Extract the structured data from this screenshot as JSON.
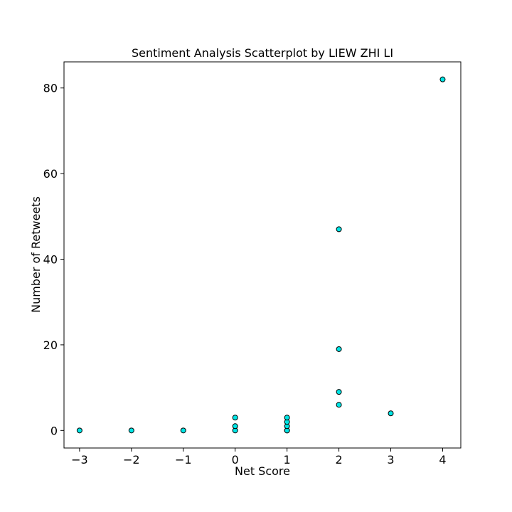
{
  "chart_data": {
    "type": "scatter",
    "title": "Sentiment Analysis Scatterplot by LIEW ZHI LI",
    "xlabel": "Net Score",
    "ylabel": "Number of Retweets",
    "xlim": [
      -3.3,
      4.35
    ],
    "ylim": [
      -4.1,
      86.1
    ],
    "xticks": [
      -3,
      -2,
      -1,
      0,
      1,
      2,
      3,
      4
    ],
    "xtick_labels": [
      "−3",
      "−2",
      "−1",
      "0",
      "1",
      "2",
      "3",
      "4"
    ],
    "yticks": [
      0,
      20,
      40,
      60,
      80
    ],
    "ytick_labels": [
      "0",
      "20",
      "40",
      "60",
      "80"
    ],
    "grid": false,
    "marker_color": "#00e5e5",
    "marker_edge_color": "#000000",
    "points": [
      {
        "x": -3,
        "y": 0
      },
      {
        "x": -2,
        "y": 0
      },
      {
        "x": -1,
        "y": 0
      },
      {
        "x": 0,
        "y": 0
      },
      {
        "x": 0,
        "y": 1
      },
      {
        "x": 0,
        "y": 3
      },
      {
        "x": 1,
        "y": 0
      },
      {
        "x": 1,
        "y": 0
      },
      {
        "x": 1,
        "y": 1
      },
      {
        "x": 1,
        "y": 2
      },
      {
        "x": 1,
        "y": 3
      },
      {
        "x": 2,
        "y": 6
      },
      {
        "x": 2,
        "y": 9
      },
      {
        "x": 2,
        "y": 19
      },
      {
        "x": 2,
        "y": 47
      },
      {
        "x": 3,
        "y": 4
      },
      {
        "x": 4,
        "y": 82
      }
    ]
  }
}
